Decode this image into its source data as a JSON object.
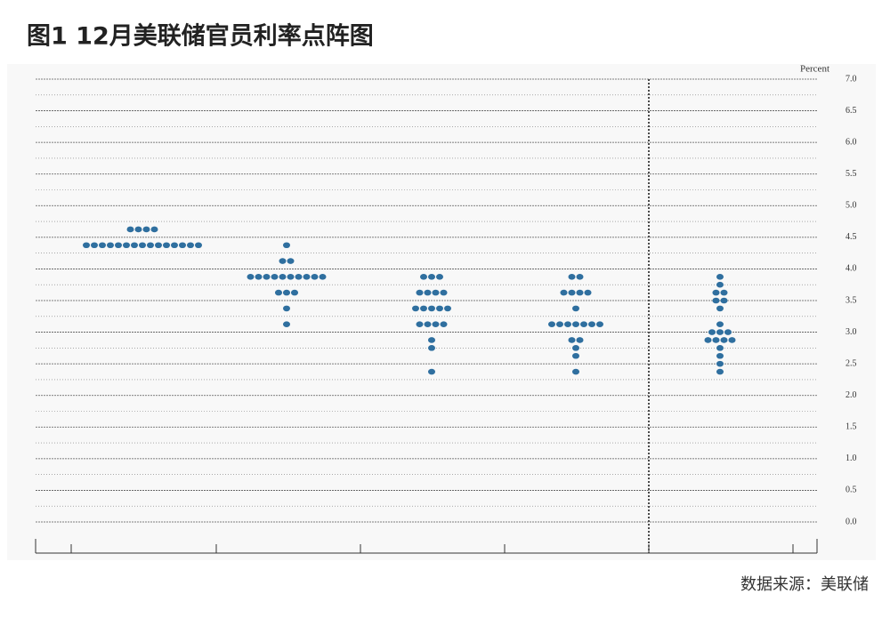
{
  "chart_data": {
    "type": "dot",
    "title": "图1  12月美联储官员利率点阵图",
    "y_label": "Percent",
    "source": "数据来源：美联储",
    "color": "#2f6f9f",
    "ylim": [
      0,
      7
    ],
    "yticks": [
      {
        "value": 0,
        "label": "0.0"
      },
      0.5,
      {
        "value": 1,
        "label": "1.0"
      },
      1.5,
      {
        "value": 2,
        "label": "2.0"
      },
      2.5,
      {
        "value": 3,
        "label": "3.0"
      },
      3.5,
      {
        "value": 4,
        "label": "4.0"
      },
      4.5,
      {
        "value": 5,
        "label": "5.0"
      },
      5.5,
      {
        "value": 6,
        "label": "6.0"
      },
      6.5,
      {
        "value": 7,
        "label": "7.0"
      }
    ],
    "grid": true,
    "columns": [
      {
        "levels": [
          4.625,
          4.375
        ],
        "counts": [
          4,
          15
        ]
      },
      {
        "levels": [
          4.375,
          4.125,
          3.875,
          3.625,
          3.375,
          3.125
        ],
        "counts": [
          1,
          2,
          10,
          3,
          1,
          1
        ]
      },
      {
        "levels": [
          3.875,
          3.625,
          3.375,
          3.125,
          2.875,
          2.75,
          2.375
        ],
        "counts": [
          3,
          4,
          5,
          4,
          1,
          1,
          1
        ]
      },
      {
        "levels": [
          3.875,
          3.625,
          3.375,
          3.125,
          2.875,
          2.75,
          2.625,
          2.375
        ],
        "counts": [
          2,
          4,
          1,
          7,
          2,
          1,
          1,
          1
        ]
      },
      {
        "levels": [
          3.875,
          3.75,
          3.625,
          3.5,
          3.375,
          3.125,
          3.0,
          2.875,
          2.75,
          2.625,
          2.5,
          2.375
        ],
        "counts": [
          1,
          1,
          2,
          2,
          1,
          1,
          3,
          4,
          1,
          1,
          1,
          1
        ]
      }
    ]
  }
}
